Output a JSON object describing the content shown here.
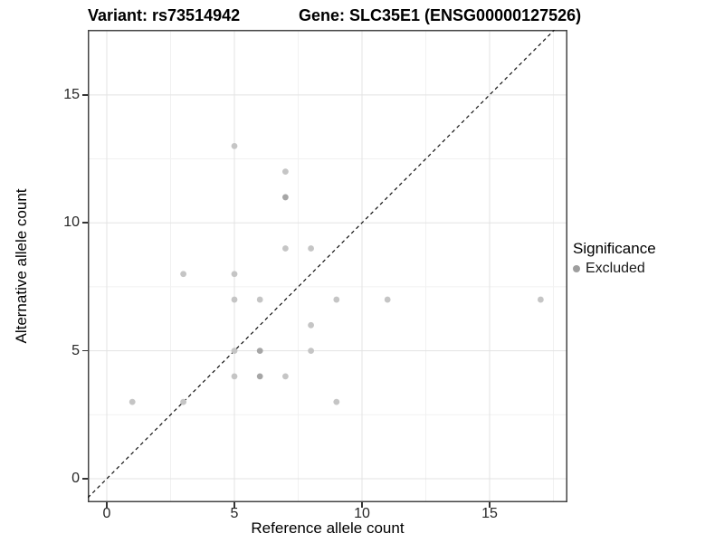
{
  "chart_data": {
    "type": "scatter",
    "titles": {
      "variant": "Variant: rs73514942",
      "gene": "Gene: SLC35E1 (ENSG00000127526)"
    },
    "xlabel": "Reference allele count",
    "ylabel": "Alternative allele count",
    "xlim": [
      -0.745,
      18.05
    ],
    "ylim": [
      -0.92,
      17.54
    ],
    "x_ticks": [
      0,
      5,
      10,
      15
    ],
    "y_ticks": [
      0,
      5,
      10,
      15
    ],
    "minor_ticks_x": [
      2.5,
      7.5,
      12.5,
      17.5
    ],
    "minor_ticks_y": [
      2.5,
      7.5,
      12.5,
      17.5
    ],
    "grid": "major+minor",
    "identity_line": {
      "style": "dashed",
      "slope": 1,
      "intercept": 0
    },
    "series": [
      {
        "name": "Excluded",
        "points": [
          {
            "x": 1,
            "y": 3
          },
          {
            "x": 3,
            "y": 3
          },
          {
            "x": 3,
            "y": 8
          },
          {
            "x": 5,
            "y": 4
          },
          {
            "x": 5,
            "y": 5
          },
          {
            "x": 5,
            "y": 7
          },
          {
            "x": 5,
            "y": 8
          },
          {
            "x": 5,
            "y": 13
          },
          {
            "x": 6,
            "y": 4,
            "dark": true
          },
          {
            "x": 6,
            "y": 5,
            "dark": true
          },
          {
            "x": 6,
            "y": 7
          },
          {
            "x": 7,
            "y": 4
          },
          {
            "x": 7,
            "y": 9
          },
          {
            "x": 7,
            "y": 11,
            "dark": true
          },
          {
            "x": 7,
            "y": 12
          },
          {
            "x": 8,
            "y": 5
          },
          {
            "x": 8,
            "y": 6
          },
          {
            "x": 8,
            "y": 9
          },
          {
            "x": 9,
            "y": 3
          },
          {
            "x": 9,
            "y": 7
          },
          {
            "x": 11,
            "y": 7
          },
          {
            "x": 17,
            "y": 7
          }
        ]
      }
    ]
  },
  "legend": {
    "title": "Significance",
    "items": [
      {
        "label": "Excluded",
        "color": "#9e9e9e"
      }
    ]
  },
  "colors": {
    "point": "#c5c5c5",
    "point_dark": "#a6a6a6",
    "grid_major": "#e3e3e3",
    "grid_minor": "#f1f1f1",
    "identity_line": "#111111",
    "panel_border": "#444444",
    "tick": "#333333"
  }
}
